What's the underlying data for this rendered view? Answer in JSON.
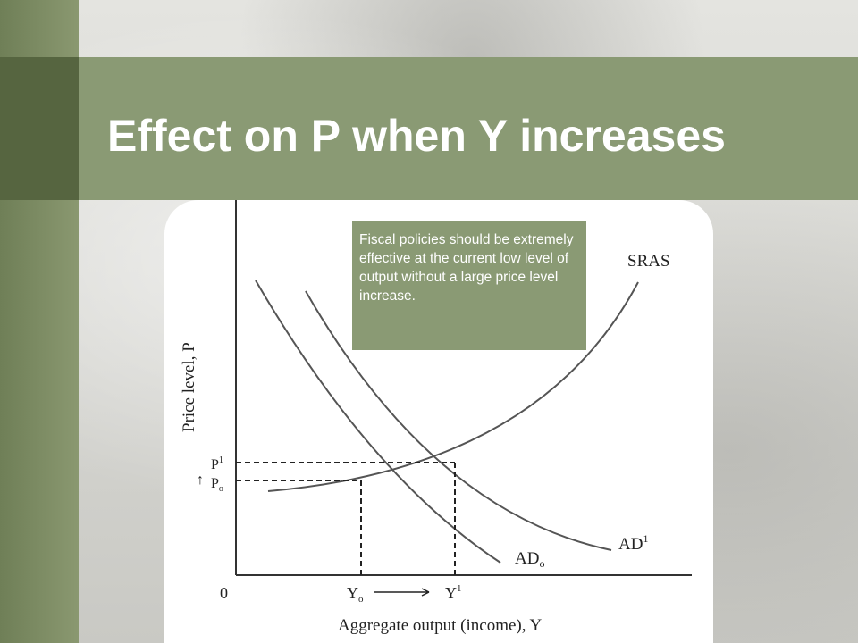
{
  "slide": {
    "title": "Effect on P when Y increases",
    "note": "Fiscal policies should be extremely effective at the current low level of output without a large price level increase."
  },
  "diagram": {
    "y_axis_label": "Price level, P",
    "x_axis_label": "Aggregate output (income), Y",
    "origin_label": "0",
    "curves": {
      "sras": "SRAS",
      "ad1_base": "AD",
      "ad1_sup": "1",
      "ad0_base": "AD",
      "ad0_sub": "o"
    },
    "p_ticks": {
      "p1_base": "P",
      "p1_sup": "1",
      "p0_base": "P",
      "p0_sub": "o",
      "arrow": "↑"
    },
    "y_ticks": {
      "y0_base": "Y",
      "y0_sub": "o",
      "y1_base": "Y",
      "y1_sup": "1"
    },
    "colors": {
      "band": "#8a9a74",
      "curve": "#555555"
    }
  }
}
